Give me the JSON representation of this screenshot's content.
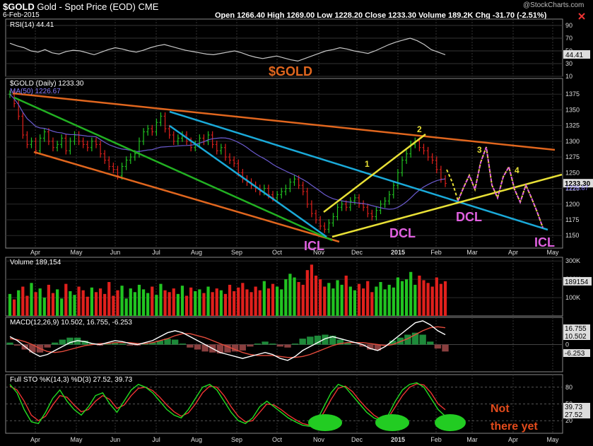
{
  "header": {
    "symbol": "$GOLD",
    "name": "Gold - Spot Price (EOD)",
    "exchange": "CME",
    "date": "6-Feb-2015",
    "watermark": "@StockCharts.com",
    "ohlc_label": "Open 1266.40  High 1269.00  Low 1228.20  Close 1233.30  Volume 189.2K  Chg -31.70 (-2.51%)"
  },
  "colors": {
    "up_bar": "#21c421",
    "down_bar": "#e0201c",
    "rsi_line": "#c8c8c8",
    "ma_line": "#6a5acd",
    "orange_line": "#e0661e",
    "blue_line": "#1aa9d8",
    "green_line": "#22b022",
    "yellow_line": "#e8e036",
    "violet_annot": "#e060e0",
    "macd_line": "#ffffff",
    "signal_line": "#e34b3c",
    "hist_up": "#1e8a3a",
    "hist_down": "#8a3f3f",
    "sto_k": "#22dd22",
    "sto_d": "#e33",
    "oval": "#22cc22"
  },
  "annotations": {
    "gold_label": "$GOLD",
    "icl_left": "ICL",
    "icl_right": "ICL",
    "dcl_1": "DCL",
    "dcl_2": "DCL",
    "n1": "1",
    "n2": "2",
    "n3": "3",
    "n4": "4",
    "not_there": "Not\nthere yet"
  },
  "chart_data": [
    {
      "type": "line",
      "panel": "rsi",
      "title": "RSI(14) 44.41",
      "ylim": [
        10,
        100
      ],
      "yticks": [
        10,
        30,
        50,
        70,
        90
      ],
      "last_value_label": "44.41",
      "series": [
        {
          "name": "RSI(14)",
          "values": [
            62,
            58,
            55,
            50,
            48,
            52,
            47,
            45,
            49,
            51,
            50,
            47,
            44,
            48,
            52,
            55,
            53,
            50,
            48,
            51,
            55,
            58,
            60,
            57,
            54,
            51,
            49,
            47,
            45,
            44,
            46,
            48,
            50,
            47,
            43,
            40,
            38,
            40,
            42,
            39,
            36,
            34,
            38,
            42,
            46,
            50,
            52,
            55,
            53,
            50,
            48,
            46,
            50,
            55,
            60,
            64,
            67,
            70,
            66,
            60,
            52,
            48,
            44
          ]
        }
      ]
    },
    {
      "type": "candlestick",
      "panel": "price",
      "title": "$GOLD (Daily) 1233.30",
      "ma_label": "MA(50) 1226.67",
      "ylim": [
        1130,
        1400
      ],
      "yticks": [
        1150,
        1175,
        1200,
        1225,
        1250,
        1275,
        1300,
        1325,
        1350,
        1375
      ],
      "x_tick_labels": [
        "Apr",
        "May",
        "Jun",
        "Jul",
        "Aug",
        "Sep",
        "Oct",
        "Nov",
        "Dec",
        "2015",
        "Feb",
        "Mar",
        "Apr",
        "May"
      ],
      "last_value_labels": [
        "1233.30",
        "1226.67"
      ],
      "close_series": [
        1375,
        1360,
        1340,
        1310,
        1295,
        1300,
        1285,
        1305,
        1315,
        1300,
        1290,
        1295,
        1305,
        1285,
        1300,
        1310,
        1300,
        1295,
        1290,
        1300,
        1295,
        1280,
        1270,
        1260,
        1255,
        1245,
        1260,
        1270,
        1275,
        1280,
        1300,
        1315,
        1320,
        1315,
        1330,
        1340,
        1320,
        1310,
        1300,
        1305,
        1310,
        1300,
        1290,
        1295,
        1305,
        1300,
        1310,
        1295,
        1285,
        1290,
        1275,
        1270,
        1265,
        1250,
        1240,
        1235,
        1230,
        1225,
        1220,
        1225,
        1215,
        1210,
        1215,
        1220,
        1225,
        1235,
        1240,
        1230,
        1220,
        1200,
        1185,
        1175,
        1165,
        1160,
        1170,
        1180,
        1195,
        1200,
        1195,
        1205,
        1210,
        1200,
        1195,
        1185,
        1180,
        1190,
        1200,
        1205,
        1215,
        1230,
        1250,
        1270,
        1280,
        1295,
        1300,
        1290,
        1285,
        1275,
        1270,
        1255,
        1240,
        1233
      ]
    },
    {
      "type": "bar",
      "panel": "volume",
      "title": "Volume 189,154",
      "ylim": [
        0,
        320000
      ],
      "ytick_labels": [
        "100K",
        "200K",
        "300K"
      ],
      "last_value_label": "189154",
      "values": [
        120000,
        90000,
        140000,
        160000,
        110000,
        180000,
        130000,
        150000,
        100000,
        170000,
        125000,
        145000,
        95000,
        175000,
        135000,
        115000,
        160000,
        140000,
        105000,
        155000,
        130000,
        150000,
        120000,
        185000,
        110000,
        140000,
        165000,
        95000,
        150000,
        130000,
        170000,
        145000,
        125000,
        160000,
        115000,
        175000,
        140000,
        130000,
        150000,
        120000,
        165000,
        110000,
        155000,
        135000,
        145000,
        125000,
        160000,
        130000,
        150000,
        140000,
        120000,
        170000,
        135000,
        155000,
        180000,
        145000,
        130000,
        160000,
        140000,
        190000,
        150000,
        175000,
        160000,
        145000,
        200000,
        230000,
        210000,
        185000,
        170000,
        250000,
        280000,
        220000,
        200000,
        160000,
        180000,
        150000,
        195000,
        170000,
        220000,
        160000,
        140000,
        175000,
        150000,
        190000,
        130000,
        160000,
        185000,
        145000,
        170000,
        155000,
        210000,
        190000,
        200000,
        240000,
        170000,
        220000,
        195000,
        180000,
        160000,
        210000,
        175000,
        189154
      ],
      "up_flags": [
        1,
        0,
        1,
        0,
        0,
        1,
        0,
        1,
        1,
        0,
        0,
        1,
        1,
        0,
        1,
        1,
        0,
        0,
        0,
        1,
        0,
        0,
        0,
        0,
        0,
        0,
        1,
        1,
        1,
        1,
        1,
        1,
        1,
        0,
        1,
        1,
        0,
        0,
        0,
        1,
        1,
        0,
        0,
        1,
        1,
        0,
        1,
        0,
        0,
        1,
        0,
        0,
        0,
        0,
        0,
        0,
        0,
        0,
        0,
        1,
        0,
        0,
        1,
        1,
        1,
        1,
        1,
        0,
        0,
        0,
        0,
        0,
        0,
        0,
        1,
        1,
        1,
        1,
        0,
        1,
        1,
        0,
        0,
        0,
        0,
        1,
        1,
        1,
        1,
        1,
        1,
        1,
        1,
        1,
        1,
        0,
        0,
        0,
        0,
        0,
        0,
        0
      ]
    },
    {
      "type": "line",
      "panel": "macd",
      "title": "MACD(12,26,9) 10.502, 16.755, -6.253",
      "last_value_labels": [
        "16.755",
        "10.502",
        "-6.253"
      ],
      "series": [
        {
          "name": "MACD(12,26,9)",
          "values": [
            8,
            4,
            -2,
            -8,
            -12,
            -10,
            -6,
            -2,
            2,
            4,
            3,
            1,
            0,
            2,
            4,
            3,
            1,
            0,
            2,
            4,
            8,
            12,
            14,
            12,
            8,
            4,
            0,
            -4,
            -8,
            -10,
            -12,
            -14,
            -12,
            -10,
            -8,
            -10,
            -14,
            -16,
            -12,
            -6,
            -2,
            2,
            6,
            8,
            6,
            4,
            2,
            0,
            -4,
            -6,
            -2,
            4,
            10,
            16,
            22,
            24,
            20,
            14,
            10
          ]
        },
        {
          "name": "Signal",
          "values": [
            6,
            5,
            3,
            0,
            -4,
            -7,
            -8,
            -7,
            -5,
            -3,
            -1,
            0,
            1,
            1,
            2,
            2,
            2,
            1,
            1,
            2,
            4,
            6,
            9,
            11,
            11,
            9,
            7,
            4,
            1,
            -2,
            -5,
            -8,
            -10,
            -11,
            -11,
            -11,
            -12,
            -13,
            -13,
            -12,
            -10,
            -7,
            -4,
            -1,
            1,
            2,
            2,
            2,
            1,
            0,
            -1,
            0,
            3,
            6,
            10,
            14,
            17,
            18,
            17
          ]
        },
        {
          "name": "Histogram",
          "values": [
            2,
            -1,
            -5,
            -8,
            -8,
            -3,
            2,
            5,
            7,
            7,
            4,
            1,
            -1,
            1,
            2,
            1,
            -1,
            -1,
            1,
            2,
            4,
            6,
            5,
            1,
            -3,
            -5,
            -7,
            -8,
            -9,
            -8,
            -7,
            -6,
            -2,
            1,
            3,
            1,
            -2,
            -3,
            1,
            6,
            8,
            9,
            10,
            9,
            5,
            2,
            0,
            -2,
            -5,
            -6,
            -1,
            4,
            7,
            10,
            12,
            10,
            3,
            -4,
            -7
          ]
        }
      ]
    },
    {
      "type": "line",
      "panel": "stochastic",
      "title": "Full STO %K(14,3) %D(3) 27.52, 39.73",
      "ylim": [
        0,
        100
      ],
      "yticks": [
        20,
        50,
        80
      ],
      "last_value_labels": [
        "39.73",
        "27.52"
      ],
      "series": [
        {
          "name": "%K(14,3)",
          "values": [
            85,
            70,
            40,
            18,
            15,
            35,
            60,
            75,
            55,
            40,
            30,
            45,
            65,
            70,
            50,
            35,
            55,
            75,
            85,
            80,
            70,
            55,
            40,
            30,
            25,
            40,
            60,
            80,
            85,
            75,
            55,
            35,
            20,
            15,
            25,
            45,
            55,
            45,
            35,
            25,
            18,
            12,
            10,
            20,
            45,
            70,
            85,
            80,
            65,
            50,
            35,
            25,
            20,
            30,
            55,
            75,
            85,
            88,
            80,
            60,
            40,
            28
          ]
        },
        {
          "name": "%D(3)",
          "values": [
            82,
            75,
            55,
            30,
            20,
            28,
            48,
            65,
            62,
            48,
            36,
            40,
            55,
            65,
            58,
            42,
            48,
            65,
            78,
            80,
            74,
            62,
            48,
            36,
            28,
            34,
            50,
            70,
            82,
            80,
            65,
            45,
            28,
            18,
            20,
            35,
            50,
            48,
            40,
            30,
            22,
            15,
            12,
            15,
            35,
            58,
            78,
            82,
            72,
            56,
            42,
            30,
            22,
            25,
            45,
            65,
            80,
            86,
            84,
            70,
            50,
            39.73
          ]
        }
      ]
    }
  ]
}
